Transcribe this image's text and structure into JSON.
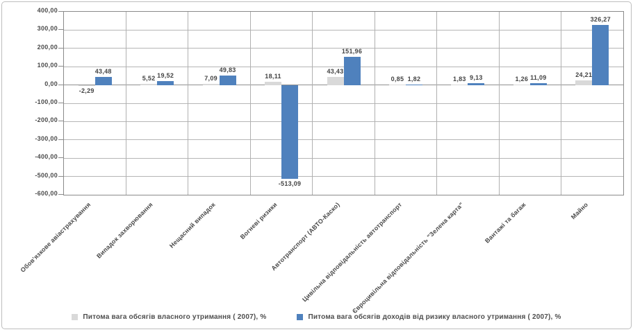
{
  "chart_data": {
    "type": "bar",
    "title": "",
    "categories": [
      "Обов'язкове авіастрахування",
      "Випадок захворювання",
      "Нещасний випадок",
      "Вогневі ризики",
      "Автотранспорт (АВТО-Каско)",
      "Цивільна відповідальність автотранспорт",
      "Євроцивільна відповідальність \"Зелена карта\"",
      "Вантажі та багаж",
      "Майно"
    ],
    "series": [
      {
        "name": "Питома вага обсягів власного утримання ( 2007), %",
        "color": "#d9d9d9",
        "values": [
          -2.29,
          5.52,
          7.09,
          18.11,
          43.43,
          0.85,
          1.83,
          1.26,
          24.21
        ],
        "labels": [
          "-2,29",
          "5,52",
          "7,09",
          "18,11",
          "43,43",
          "0,85",
          "1,83",
          "1,26",
          "24,21"
        ]
      },
      {
        "name": "Питома вага обсягів доходів від ризику власного утримання ( 2007), %",
        "color": "#4f81bd",
        "values": [
          43.48,
          19.52,
          49.83,
          -513.09,
          151.96,
          1.82,
          9.13,
          11.09,
          326.27
        ],
        "labels": [
          "43,48",
          "19,52",
          "49,83",
          "-513,09",
          "151,96",
          "1,82",
          "9,13",
          "11,09",
          "326,27"
        ]
      }
    ],
    "ylim": [
      -600,
      400
    ],
    "y_tick_step": 100,
    "y_tick_labels": [
      "400,00",
      "300,00",
      "200,00",
      "100,00",
      "0,00",
      "-100,00",
      "-200,00",
      "-300,00",
      "-400,00",
      "-500,00",
      "-600,00"
    ],
    "grid": true,
    "legend_position": "bottom",
    "styles": {
      "grid_color": "#b5b5b5",
      "axis_color": "#8a8a8a",
      "text_color": "#4a4a4a",
      "background": "#ffffff"
    }
  }
}
